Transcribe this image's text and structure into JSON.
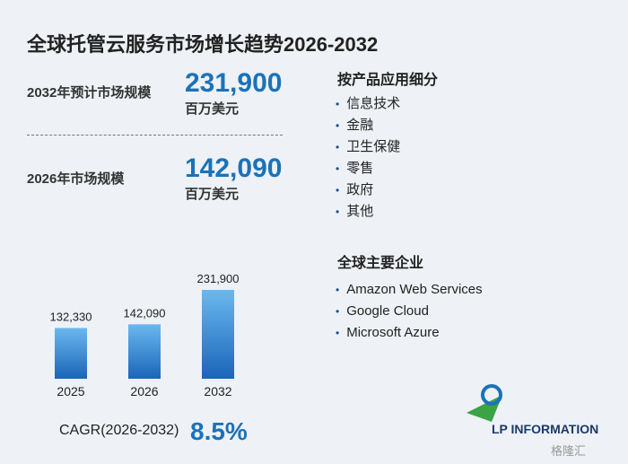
{
  "title": "全球托管云服务市场增长趋势2026-2032",
  "stats": [
    {
      "label": "2032年预计市场规模",
      "value": "231,900",
      "unit": "百万美元"
    },
    {
      "label": "2026年市场规模",
      "value": "142,090",
      "unit": "百万美元"
    }
  ],
  "chart_data": {
    "type": "bar",
    "categories": [
      "2025",
      "2026",
      "2032"
    ],
    "values": [
      132330,
      142090,
      231900
    ],
    "value_labels": [
      "132,330",
      "142,090",
      "231,900"
    ],
    "color": "#2b7fd0"
  },
  "cagr": {
    "label": "CAGR(2026-2032)",
    "value": "8.5%"
  },
  "segments": {
    "title": "按产品应用细分",
    "items": [
      "信息技术",
      "金融",
      "卫生保健",
      "零售",
      "政府",
      "其他"
    ]
  },
  "companies": {
    "title": "全球主要企业",
    "items": [
      "Amazon Web Services",
      "Google Cloud",
      "Microsoft Azure"
    ]
  },
  "logo": "LP INFORMATION",
  "watermark": "格隆汇"
}
